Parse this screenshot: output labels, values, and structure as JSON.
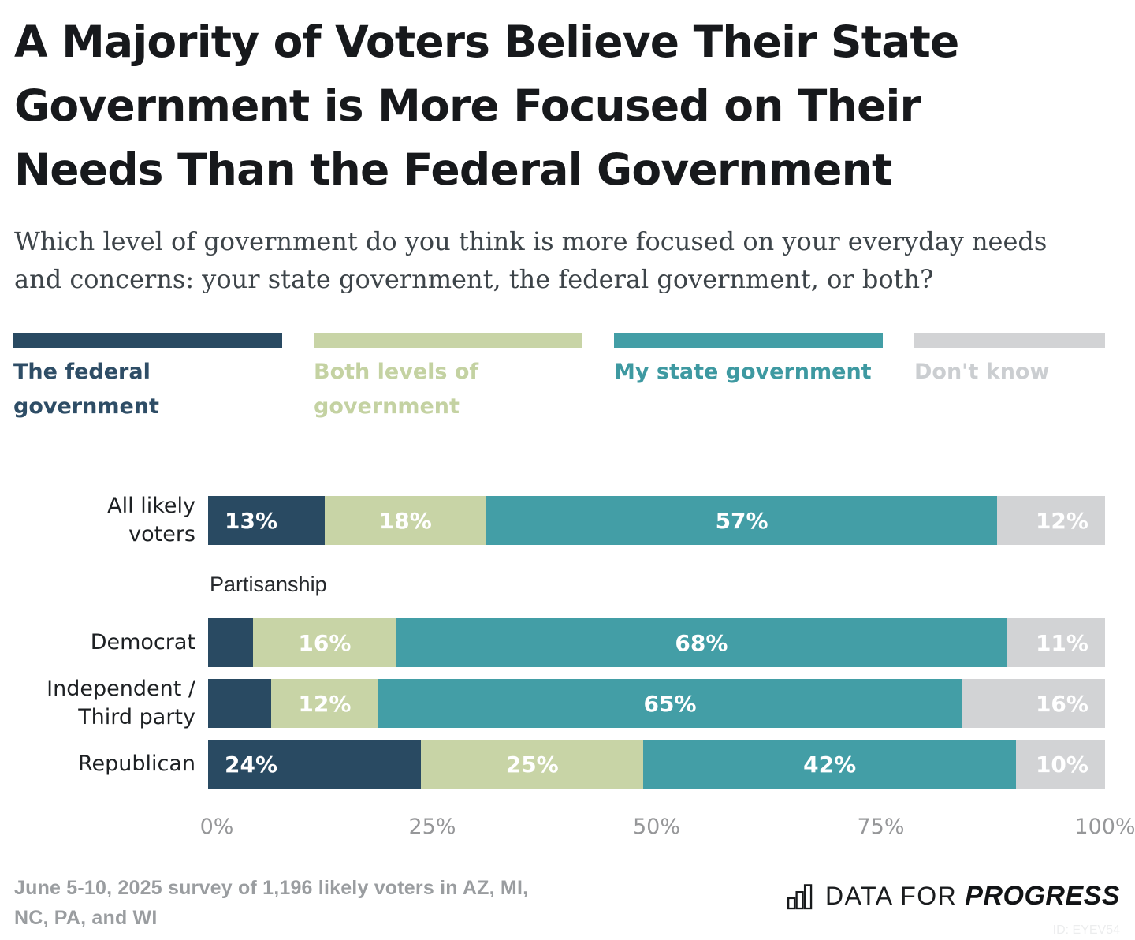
{
  "title_lines": [
    "A Majority of Voters Believe Their State",
    "Government is More Focused on Their",
    "Needs Than the Federal Government"
  ],
  "subtitle_lines": [
    "Which level of government do you think is more focused on your everyday needs",
    "and concerns: your state government, the federal government, or both?"
  ],
  "legend": {
    "items": [
      {
        "label": "The federal\ngovernment",
        "color": "#294a62",
        "text_color": "#2e4d66"
      },
      {
        "label": "Both levels of\ngovernment",
        "color": "#c8d4a6",
        "text_color": "#c4d2a2"
      },
      {
        "label": "My state government",
        "color": "#439ea6",
        "text_color": "#3e99a1"
      },
      {
        "label": "Don't know",
        "color": "#d2d3d5",
        "text_color": "#cbced1"
      }
    ]
  },
  "chart_data": {
    "type": "bar",
    "orientation": "horizontal",
    "stacked": true,
    "group_label": "Partisanship",
    "series_names": [
      "The federal government",
      "Both levels of government",
      "My state government",
      "Don't know"
    ],
    "x_ticks": [
      "0%",
      "25%",
      "50%",
      "75%",
      "100%"
    ],
    "x_range": [
      0,
      100
    ],
    "rows": [
      {
        "label": "All likely\nvoters",
        "values": [
          13,
          18,
          57,
          12
        ],
        "value_labels": [
          "13%",
          "18%",
          "57%",
          "12%"
        ]
      },
      {
        "label": "Democrat",
        "values": [
          5,
          16,
          68,
          11
        ],
        "value_labels": [
          "",
          "16%",
          "68%",
          "11%"
        ]
      },
      {
        "label": "Independent /\nThird party",
        "values": [
          7,
          12,
          65,
          16
        ],
        "value_labels": [
          "",
          "12%",
          "65%",
          "16%"
        ]
      },
      {
        "label": "Republican",
        "values": [
          24,
          25,
          42,
          10
        ],
        "value_labels": [
          "24%",
          "25%",
          "42%",
          "10%"
        ]
      }
    ]
  },
  "footer": {
    "note_lines": [
      "June 5-10, 2025 survey of 1,196 likely voters in AZ, MI,",
      "NC, PA, and WI"
    ],
    "logo": {
      "icon": "bar-chart-icon",
      "prefix": "DATA FOR",
      "brand": "PROGRESS"
    },
    "chart_id": "ID: EYEV54"
  }
}
